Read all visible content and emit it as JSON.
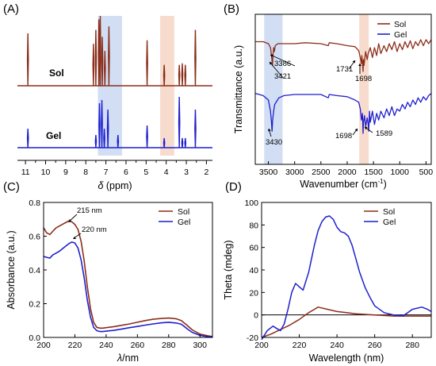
{
  "colors": {
    "sol": "#8B2E1A",
    "gel": "#1F1FD0",
    "bandBlue": "#C9D8F1",
    "bandOrange": "#F6D5C3"
  },
  "chart_data": [
    {
      "id": "A",
      "panel_label": "(A)",
      "type": "line",
      "xlabel_italic": "δ",
      "xlabel_rest": " (ppm)",
      "xlim": [
        11.4,
        1.7
      ],
      "xticks": [
        11,
        10,
        9,
        8,
        7,
        6,
        5,
        4,
        3,
        2
      ],
      "highlight_bands": [
        {
          "from": 7.4,
          "to": 6.2,
          "color": "bandBlue"
        },
        {
          "from": 4.3,
          "to": 3.6,
          "color": "bandOrange"
        }
      ],
      "series": [
        {
          "name": "Sol",
          "color": "sol",
          "peaks": [
            [
              10.88,
              0.75
            ],
            [
              7.62,
              0.6
            ],
            [
              7.5,
              0.8
            ],
            [
              7.35,
              0.95
            ],
            [
              7.28,
              1.0
            ],
            [
              7.18,
              0.7
            ],
            [
              7.05,
              0.5
            ],
            [
              6.85,
              0.85
            ],
            [
              4.95,
              0.65
            ],
            [
              4.1,
              0.3
            ],
            [
              3.35,
              0.3
            ],
            [
              3.2,
              0.32
            ],
            [
              3.05,
              0.3
            ],
            [
              2.55,
              0.8
            ]
          ]
        },
        {
          "name": "Gel",
          "color": "gel",
          "peaks": [
            [
              10.88,
              0.3
            ],
            [
              7.5,
              0.2
            ],
            [
              7.32,
              0.7
            ],
            [
              7.2,
              0.75
            ],
            [
              7.08,
              0.3
            ],
            [
              6.9,
              0.6
            ],
            [
              6.4,
              0.2
            ],
            [
              4.95,
              0.35
            ],
            [
              4.1,
              0.15
            ],
            [
              3.35,
              0.8
            ],
            [
              3.2,
              0.15
            ],
            [
              3.05,
              0.15
            ],
            [
              2.55,
              0.6
            ]
          ]
        }
      ]
    },
    {
      "id": "B",
      "panel_label": "(B)",
      "type": "line",
      "xlabel": "Wavenumber (cm",
      "xlabel_sup": "-1",
      "xlabel_end": ")",
      "ylabel": "Transmittance (a.u.)",
      "xlim": [
        3750,
        400
      ],
      "xticks": [
        3500,
        3000,
        2500,
        2000,
        1500,
        1000,
        500
      ],
      "highlight_bands": [
        {
          "from": 3580,
          "to": 3230,
          "color": "bandBlue"
        },
        {
          "from": 1770,
          "to": 1590,
          "color": "bandOrange"
        }
      ],
      "legend": [
        "Sol",
        "Gel"
      ],
      "annotations": [
        "3386",
        "3421",
        "1731",
        "1698",
        "3430",
        "1698",
        "1589"
      ],
      "series": [
        {
          "name": "Sol",
          "color": "sol",
          "x": [
            3750,
            3600,
            3500,
            3460,
            3440,
            3421,
            3410,
            3400,
            3386,
            3370,
            3320,
            3200,
            3000,
            2800,
            2500,
            2360,
            2340,
            2200,
            2000,
            1850,
            1780,
            1750,
            1731,
            1720,
            1698,
            1690,
            1680,
            1650,
            1620,
            1600,
            1560,
            1520,
            1480,
            1440,
            1400,
            1360,
            1300,
            1250,
            1200,
            1150,
            1100,
            1050,
            1000,
            950,
            900,
            850,
            800,
            750,
            700,
            650,
            600,
            550,
            500,
            450,
            400
          ],
          "y": [
            0.84,
            0.84,
            0.82,
            0.78,
            0.7,
            0.6,
            0.72,
            0.78,
            0.74,
            0.8,
            0.82,
            0.82,
            0.82,
            0.83,
            0.82,
            0.8,
            0.83,
            0.82,
            0.8,
            0.79,
            0.75,
            0.68,
            0.62,
            0.7,
            0.54,
            0.66,
            0.6,
            0.74,
            0.66,
            0.72,
            0.78,
            0.68,
            0.78,
            0.7,
            0.82,
            0.72,
            0.8,
            0.74,
            0.82,
            0.76,
            0.84,
            0.74,
            0.82,
            0.76,
            0.84,
            0.78,
            0.85,
            0.77,
            0.84,
            0.8,
            0.86,
            0.8,
            0.86,
            0.82,
            0.86
          ]
        },
        {
          "name": "Gel",
          "color": "gel",
          "x": [
            3750,
            3600,
            3500,
            3460,
            3440,
            3430,
            3420,
            3400,
            3380,
            3300,
            3200,
            3000,
            2800,
            2500,
            2360,
            2340,
            2200,
            2000,
            1850,
            1780,
            1750,
            1730,
            1710,
            1698,
            1690,
            1670,
            1650,
            1620,
            1600,
            1589,
            1575,
            1560,
            1520,
            1480,
            1440,
            1400,
            1360,
            1300,
            1250,
            1200,
            1150,
            1100,
            1050,
            1000,
            950,
            900,
            850,
            800,
            750,
            700,
            650,
            600,
            550,
            500,
            450,
            400
          ],
          "y": [
            0.36,
            0.34,
            0.3,
            0.2,
            0.1,
            0.02,
            0.12,
            0.2,
            0.26,
            0.32,
            0.34,
            0.35,
            0.35,
            0.35,
            0.32,
            0.35,
            0.34,
            0.33,
            0.3,
            0.28,
            0.22,
            0.12,
            0.18,
            0.0,
            0.1,
            0.16,
            0.06,
            0.14,
            0.08,
            0.02,
            0.2,
            0.1,
            0.2,
            0.08,
            0.18,
            0.12,
            0.2,
            0.14,
            0.22,
            0.16,
            0.24,
            0.16,
            0.22,
            0.2,
            0.26,
            0.22,
            0.28,
            0.24,
            0.3,
            0.26,
            0.32,
            0.28,
            0.33,
            0.3,
            0.34,
            0.36
          ]
        }
      ]
    },
    {
      "id": "C",
      "panel_label": "(C)",
      "type": "line",
      "ylabel": "Absorbance (a.u.)",
      "xlabel_italic": "λ",
      "xlabel_rest": "/nm",
      "xlim": [
        200,
        308
      ],
      "ylim": [
        0,
        0.8
      ],
      "xticks": [
        200,
        220,
        240,
        260,
        280,
        300
      ],
      "yticks": [
        0.0,
        0.2,
        0.4,
        0.6,
        0.8
      ],
      "legend": [
        "Sol",
        "Gel"
      ],
      "annotations": [
        "215 nm",
        "220 nm"
      ],
      "series": [
        {
          "name": "Sol",
          "color": "sol",
          "x": [
            200,
            202,
            204,
            206,
            208,
            210,
            212,
            214,
            216,
            218,
            220,
            222,
            224,
            226,
            228,
            230,
            232,
            234,
            236,
            238,
            240,
            245,
            250,
            255,
            260,
            265,
            270,
            275,
            280,
            285,
            288,
            290,
            292,
            295,
            300,
            305,
            308
          ],
          "y": [
            0.65,
            0.62,
            0.61,
            0.63,
            0.65,
            0.66,
            0.67,
            0.68,
            0.69,
            0.685,
            0.67,
            0.64,
            0.57,
            0.45,
            0.3,
            0.17,
            0.09,
            0.06,
            0.055,
            0.055,
            0.058,
            0.064,
            0.072,
            0.08,
            0.09,
            0.1,
            0.108,
            0.112,
            0.115,
            0.11,
            0.1,
            0.085,
            0.07,
            0.045,
            0.02,
            0.01,
            0.005
          ]
        },
        {
          "name": "Gel",
          "color": "gel",
          "x": [
            200,
            202,
            204,
            206,
            208,
            210,
            212,
            214,
            216,
            218,
            220,
            222,
            224,
            226,
            228,
            230,
            232,
            234,
            236,
            238,
            240,
            245,
            250,
            255,
            260,
            265,
            270,
            275,
            280,
            285,
            288,
            290,
            292,
            295,
            300,
            305,
            308
          ],
          "y": [
            0.48,
            0.475,
            0.47,
            0.49,
            0.5,
            0.51,
            0.525,
            0.54,
            0.555,
            0.565,
            0.56,
            0.53,
            0.46,
            0.35,
            0.22,
            0.12,
            0.06,
            0.04,
            0.035,
            0.035,
            0.037,
            0.042,
            0.05,
            0.058,
            0.065,
            0.073,
            0.08,
            0.086,
            0.09,
            0.085,
            0.078,
            0.065,
            0.05,
            0.03,
            0.012,
            0.005,
            0.003
          ]
        }
      ]
    },
    {
      "id": "D",
      "panel_label": "(D)",
      "type": "line",
      "ylabel": "Theta (mdeg)",
      "xlabel": "Wavelength (nm)",
      "xlim": [
        200,
        290
      ],
      "ylim": [
        -20,
        100
      ],
      "xticks": [
        200,
        220,
        240,
        260,
        280
      ],
      "yticks": [
        -20,
        0,
        20,
        40,
        60,
        80,
        100
      ],
      "legend": [
        "Sol",
        "Gel"
      ],
      "series": [
        {
          "name": "Sol",
          "color": "sol",
          "x": [
            200,
            205,
            210,
            215,
            220,
            225,
            228,
            230,
            235,
            240,
            245,
            250,
            255,
            260,
            265,
            270,
            280,
            290
          ],
          "y": [
            -20,
            -17,
            -13,
            -9,
            -4,
            2,
            5,
            7,
            5,
            3,
            2,
            1,
            0.5,
            0,
            -0.5,
            -1,
            -1,
            -1
          ]
        },
        {
          "name": "Gel",
          "color": "gel",
          "x": [
            200,
            203,
            206,
            208,
            210,
            212,
            214,
            216,
            218,
            220,
            222,
            225,
            228,
            230,
            232,
            234,
            236,
            238,
            240,
            242,
            244,
            246,
            248,
            250,
            252,
            255,
            258,
            260,
            265,
            270,
            275,
            280,
            285,
            288,
            290
          ],
          "y": [
            -22,
            -14,
            -10,
            -12,
            -14,
            -8,
            5,
            20,
            28,
            25,
            22,
            38,
            62,
            75,
            83,
            87,
            88,
            85,
            78,
            74,
            73,
            70,
            62,
            50,
            38,
            24,
            14,
            8,
            2,
            0,
            -1,
            5,
            7,
            5,
            3
          ]
        }
      ]
    }
  ]
}
